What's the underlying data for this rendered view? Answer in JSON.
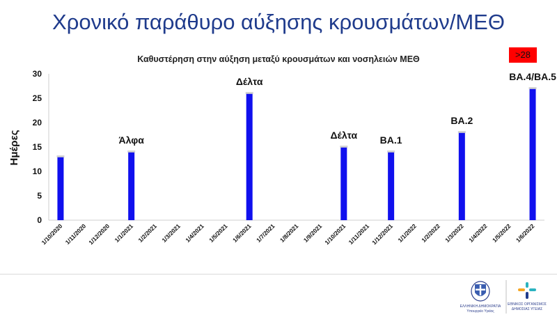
{
  "slide": {
    "title": "Χρονικό παράθυρο αύξησης κρουσμάτων/ΜΕΘ",
    "badge": ">28"
  },
  "colors": {
    "title": "#1f3b8c",
    "bar": "#1010ee",
    "badge": "#ff0000"
  },
  "footer": {
    "left_logo_line1": "ΕΛΛΗΝΙΚΗ ΔΗΜΟΚΡΑΤΙΑ",
    "left_logo_line2": "Υπουργείο Υγείας",
    "right_logo_line1": "ΕΘΝΙΚΟΣ ΟΡΓΑΝΙΣΜΟΣ",
    "right_logo_line2": "ΔΗΜΟΣΙΑΣ ΥΓΕΙΑΣ"
  },
  "chart_data": {
    "type": "bar",
    "title": "Καθυστέρηση στην αύξηση μεταξύ κρουσμάτων και νοσηλειών ΜΕΘ",
    "xlabel": "",
    "ylabel": "Ημέρες",
    "ylim": [
      0,
      30
    ],
    "yticks": [
      0,
      5,
      10,
      15,
      20,
      25,
      30
    ],
    "grid": false,
    "categories": [
      "1/10/2020",
      "1/11/2020",
      "1/12/2020",
      "1/1/2021",
      "1/2/2021",
      "1/3/2021",
      "1/4/2021",
      "1/5/2021",
      "1/6/2021",
      "1/7/2021",
      "1/8/2021",
      "1/9/2021",
      "1/10/2021",
      "1/11/2021",
      "1/12/2021",
      "1/1/2022",
      "1/2/2022",
      "1/3/2022",
      "1/4/2022",
      "1/5/2022",
      "1/6/2022"
    ],
    "values": [
      13,
      null,
      null,
      14,
      null,
      null,
      null,
      null,
      26,
      null,
      null,
      null,
      15,
      null,
      14,
      null,
      null,
      18,
      null,
      null,
      27
    ],
    "annotations": [
      {
        "category": "1/1/2021",
        "text": "Άλφα"
      },
      {
        "category": "1/6/2021",
        "text": "Δέλτα"
      },
      {
        "category": "1/10/2021",
        "text": "Δέλτα"
      },
      {
        "category": "1/12/2021",
        "text": "BA.1"
      },
      {
        "category": "1/3/2022",
        "text": "BA.2"
      },
      {
        "category": "1/6/2022",
        "text": "BA.4/BA.5"
      }
    ]
  }
}
